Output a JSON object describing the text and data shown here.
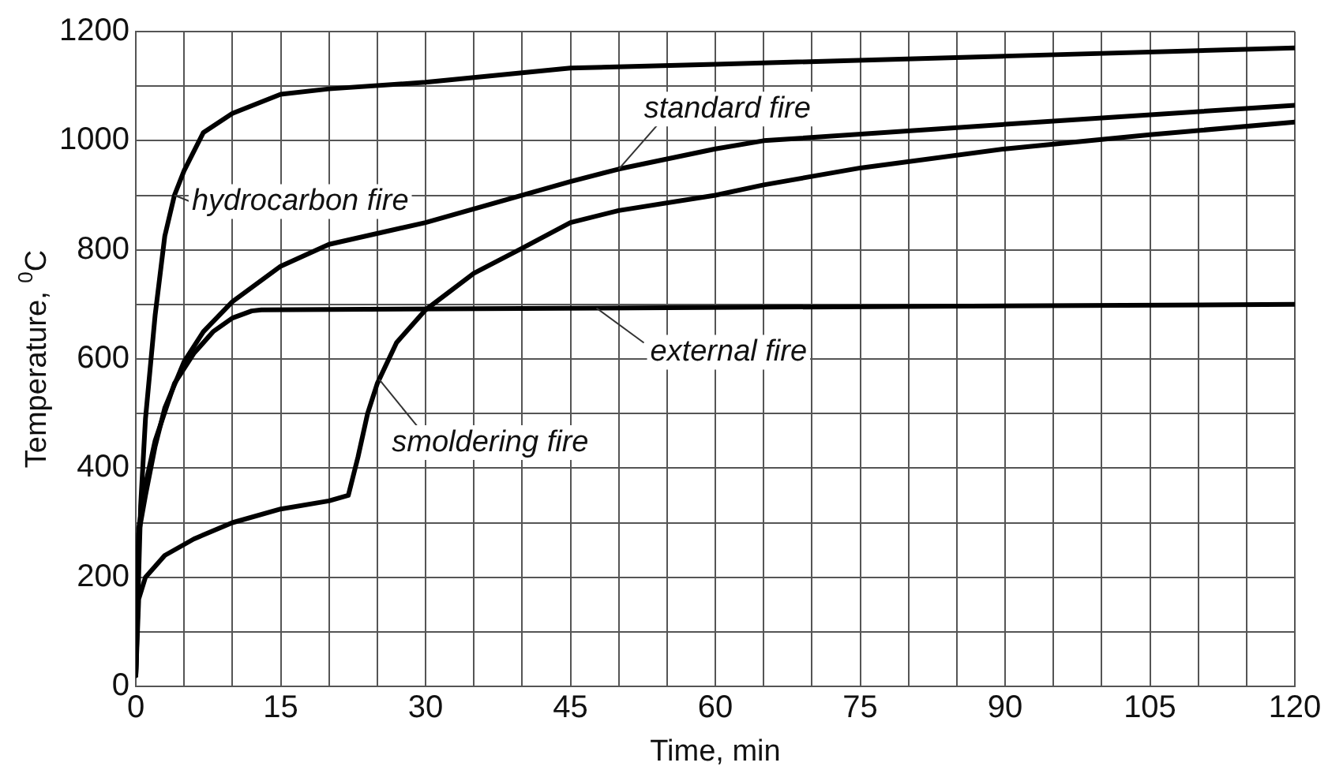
{
  "chart_data": {
    "type": "line",
    "xlabel": "Time, min",
    "ylabel": "Temperature, $^{0}$C",
    "xlim": [
      0,
      120
    ],
    "ylim": [
      0,
      1200
    ],
    "xticks": [
      0,
      {
        "value": 5,
        "label": null
      },
      {
        "value": 10,
        "label": null
      },
      15,
      {
        "value": 20,
        "label": null
      },
      {
        "value": 25,
        "label": null
      },
      30,
      {
        "value": 35,
        "label": null
      },
      {
        "value": 40,
        "label": null
      },
      45,
      {
        "value": 50,
        "label": null
      },
      {
        "value": 55,
        "label": null
      },
      60,
      {
        "value": 65,
        "label": null
      },
      {
        "value": 70,
        "label": null
      },
      75,
      {
        "value": 80,
        "label": null
      },
      {
        "value": 85,
        "label": null
      },
      90,
      {
        "value": 95,
        "label": null
      },
      {
        "value": 100,
        "label": null
      },
      105,
      {
        "value": 110,
        "label": null
      },
      {
        "value": 115,
        "label": null
      },
      120
    ],
    "yticks": [
      0,
      {
        "value": 100,
        "label": null
      },
      200,
      {
        "value": 300,
        "label": null
      },
      400,
      {
        "value": 500,
        "label": null
      },
      600,
      {
        "value": 700,
        "label": null
      },
      800,
      {
        "value": 900,
        "label": null
      },
      1000,
      {
        "value": 1100,
        "label": null
      },
      1200
    ],
    "grid": true,
    "legend": false,
    "marker": "none",
    "line_style": "solid",
    "series": [
      {
        "name": "hydrocarbon fire",
        "color": "#000000",
        "x": [
          0,
          0.5,
          1,
          2,
          3,
          4,
          5,
          7,
          10,
          15,
          20,
          30,
          45,
          60,
          90,
          120
        ],
        "values": [
          20,
          330,
          490,
          680,
          825,
          900,
          945,
          1015,
          1050,
          1085,
          1095,
          1107,
          1133,
          1140,
          1155,
          1170
        ]
      },
      {
        "name": "standard fire",
        "color": "#000000",
        "x": [
          0,
          0.3,
          1,
          2,
          3,
          5,
          7,
          10,
          15,
          20,
          30,
          45,
          50,
          60,
          65,
          90,
          120
        ],
        "values": [
          20,
          280,
          350,
          440,
          510,
          595,
          650,
          705,
          770,
          810,
          850,
          925,
          948,
          985,
          1000,
          1030,
          1065
        ]
      },
      {
        "name": "external fire",
        "color": "#000000",
        "x": [
          0,
          0.3,
          1,
          2,
          4,
          6,
          8,
          10,
          12,
          13,
          120
        ],
        "values": [
          20,
          290,
          370,
          450,
          555,
          610,
          650,
          675,
          688,
          690,
          700
        ]
      },
      {
        "name": "smoldering fire",
        "color": "#000000",
        "x": [
          0,
          0.3,
          1,
          3,
          6,
          10,
          15,
          20,
          22,
          23,
          24,
          25,
          27,
          30,
          35,
          40,
          45,
          50,
          60,
          65,
          75,
          90,
          105,
          120
        ],
        "values": [
          20,
          160,
          200,
          240,
          270,
          300,
          325,
          340,
          350,
          420,
          500,
          555,
          630,
          690,
          757,
          803,
          850,
          872,
          900,
          919,
          950,
          985,
          1011,
          1034
        ]
      }
    ]
  }
}
